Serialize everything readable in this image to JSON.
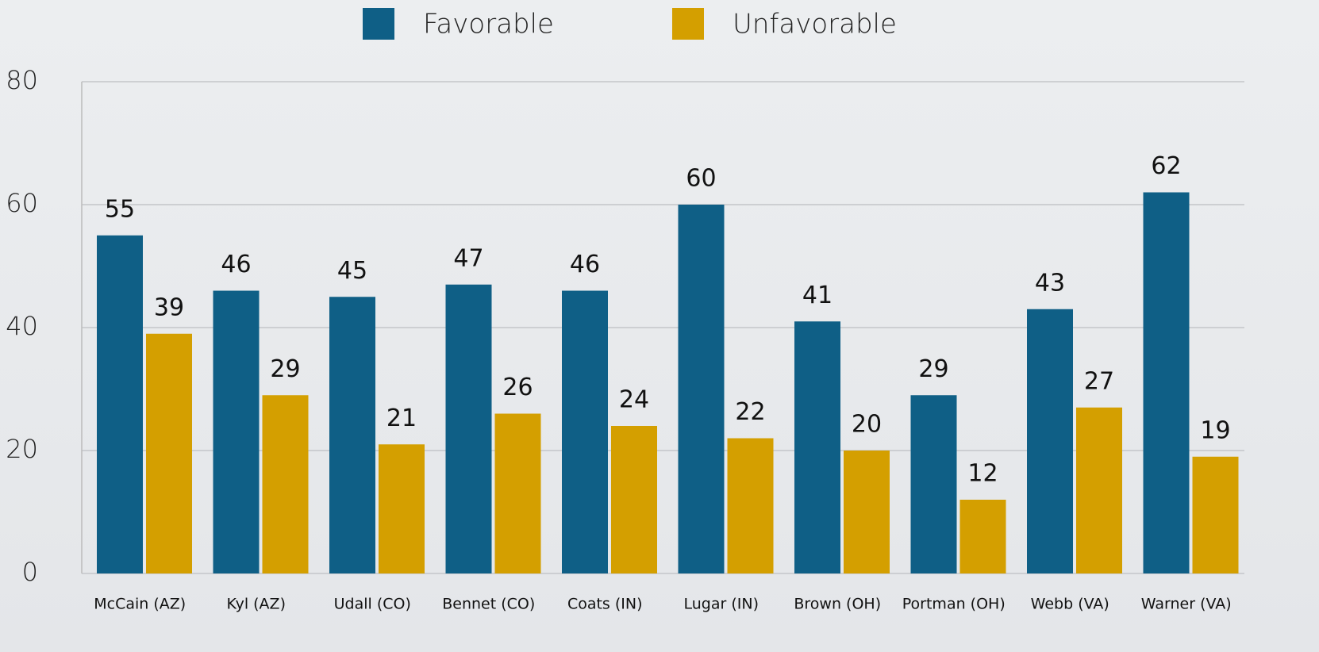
{
  "chart_data": {
    "type": "bar",
    "categories": [
      "McCain (AZ)",
      "Kyl (AZ)",
      "Udall (CO)",
      "Bennet (CO)",
      "Coats (IN)",
      "Lugar (IN)",
      "Brown (OH)",
      "Portman (OH)",
      "Webb (VA)",
      "Warner (VA)"
    ],
    "series": [
      {
        "name": "Favorable",
        "color": "#0f5f86",
        "values": [
          55,
          46,
          45,
          47,
          46,
          60,
          41,
          29,
          43,
          62
        ]
      },
      {
        "name": "Unfavorable",
        "color": "#d49f00",
        "values": [
          39,
          29,
          21,
          26,
          24,
          22,
          20,
          12,
          27,
          19
        ]
      }
    ],
    "ylim": [
      0,
      80
    ],
    "yticks": [
      0,
      20,
      40,
      60,
      80
    ],
    "grid": true,
    "legend": "top"
  }
}
